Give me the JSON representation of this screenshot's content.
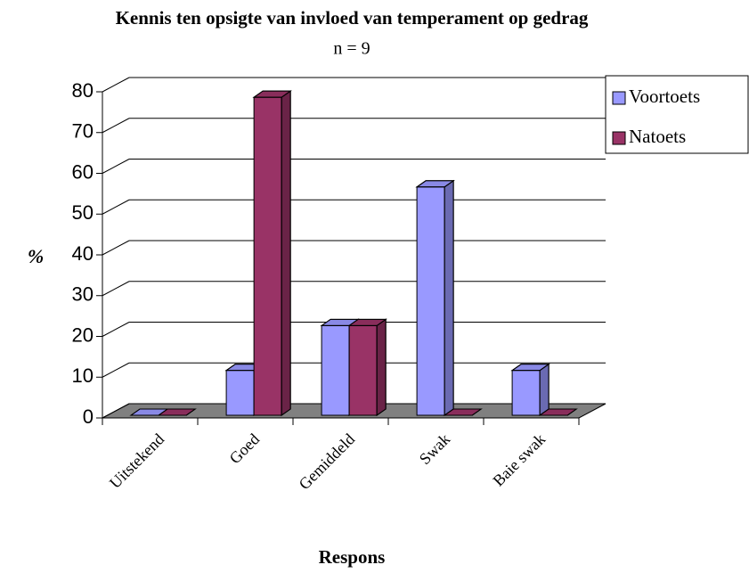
{
  "chart_data": {
    "type": "bar3d",
    "title": "Kennis ten opsigte van invloed van temperament op gedrag",
    "subtitle": "n = 9",
    "xlabel": "Respons",
    "ylabel": "%",
    "categories": [
      "Uitstekend",
      "Goed",
      "Gemiddeld",
      "Swak",
      "Baie swak"
    ],
    "series": [
      {
        "name": "Voortoets",
        "color": "#9999ff",
        "values": [
          0,
          11,
          22,
          56,
          11
        ]
      },
      {
        "name": "Natoets",
        "color": "#993366",
        "values": [
          0,
          78,
          22,
          0,
          0
        ]
      }
    ],
    "ylim": [
      0,
      80
    ],
    "yticks": [
      0,
      10,
      20,
      30,
      40,
      50,
      60,
      70,
      80
    ],
    "grid": true,
    "legend": "right"
  }
}
